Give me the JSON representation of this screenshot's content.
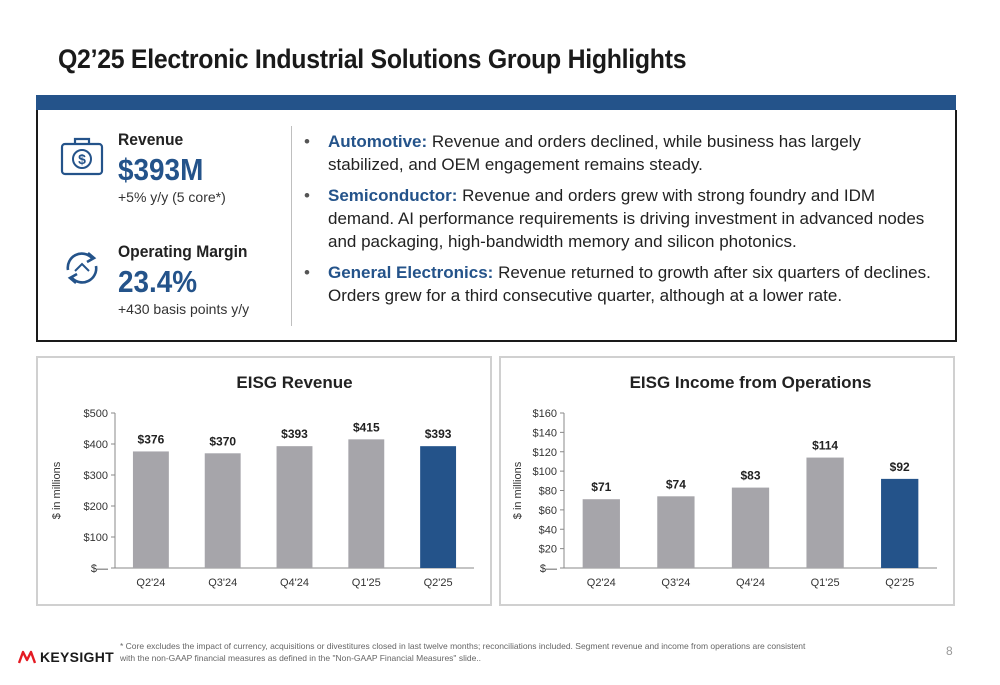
{
  "slide": {
    "title": "Q2’25 Electronic Industrial Solutions Group Highlights",
    "page_number": "8"
  },
  "kpis": {
    "revenue": {
      "label": "Revenue",
      "value": "$393M",
      "sub": "+5% y/y (5 core*)",
      "icon": "money-bag-icon"
    },
    "margin": {
      "label": "Operating Margin",
      "value": "23.4%",
      "sub": "+430 basis points y/y",
      "icon": "cycle-arrows-icon"
    }
  },
  "bullets": [
    {
      "lead": "Automotive:",
      "text": " Revenue and orders declined, while business has largely stabilized, and OEM engagement remains steady."
    },
    {
      "lead": "Semiconductor:",
      "text": " Revenue and orders grew with strong foundry and IDM demand. AI performance requirements is driving investment in advanced nodes and packaging, high-bandwidth memory and silicon photonics."
    },
    {
      "lead": "General Electronics:",
      "text": " Revenue returned to growth after six quarters of declines. Orders grew for a third consecutive quarter, although at a lower rate."
    }
  ],
  "footer": {
    "logo_text": "KEYSIGHT",
    "footnote": "* Core excludes the impact of currency, acquisitions or divestitures closed in last twelve months; reconciliations included.  Segment revenue and income from operations are consistent with the non-GAAP financial measures as defined in the \"Non-GAAP Financial Measures\" slide.."
  },
  "colors": {
    "accent": "#24538a",
    "bar_gray": "#a6a5aa",
    "bar_highlight": "#24538a"
  },
  "chart_data": [
    {
      "type": "bar",
      "title": "EISG Revenue",
      "ylabel": "$ in millions",
      "categories": [
        "Q2'24",
        "Q3'24",
        "Q4'24",
        "Q1'25",
        "Q2'25"
      ],
      "values": [
        376,
        370,
        393,
        415,
        393
      ],
      "data_labels": [
        "$376",
        "$370",
        "$393",
        "$415",
        "$393"
      ],
      "ylim": [
        0,
        500
      ],
      "yticks": [
        0,
        100,
        200,
        300,
        400,
        500
      ],
      "ytick_labels": [
        "$—",
        "$100",
        "$200",
        "$300",
        "$400",
        "$500"
      ],
      "highlight_index": 4,
      "grid": false,
      "legend": "none"
    },
    {
      "type": "bar",
      "title": "EISG Income from Operations",
      "ylabel": "$ in millions",
      "categories": [
        "Q2'24",
        "Q3'24",
        "Q4'24",
        "Q1'25",
        "Q2'25"
      ],
      "values": [
        71,
        74,
        83,
        114,
        92
      ],
      "data_labels": [
        "$71",
        "$74",
        "$83",
        "$114",
        "$92"
      ],
      "ylim": [
        0,
        160
      ],
      "yticks": [
        0,
        20,
        40,
        60,
        80,
        100,
        120,
        140,
        160
      ],
      "ytick_labels": [
        "$—",
        "$20",
        "$40",
        "$60",
        "$80",
        "$100",
        "$120",
        "$140",
        "$160"
      ],
      "highlight_index": 4,
      "grid": false,
      "legend": "none"
    }
  ]
}
